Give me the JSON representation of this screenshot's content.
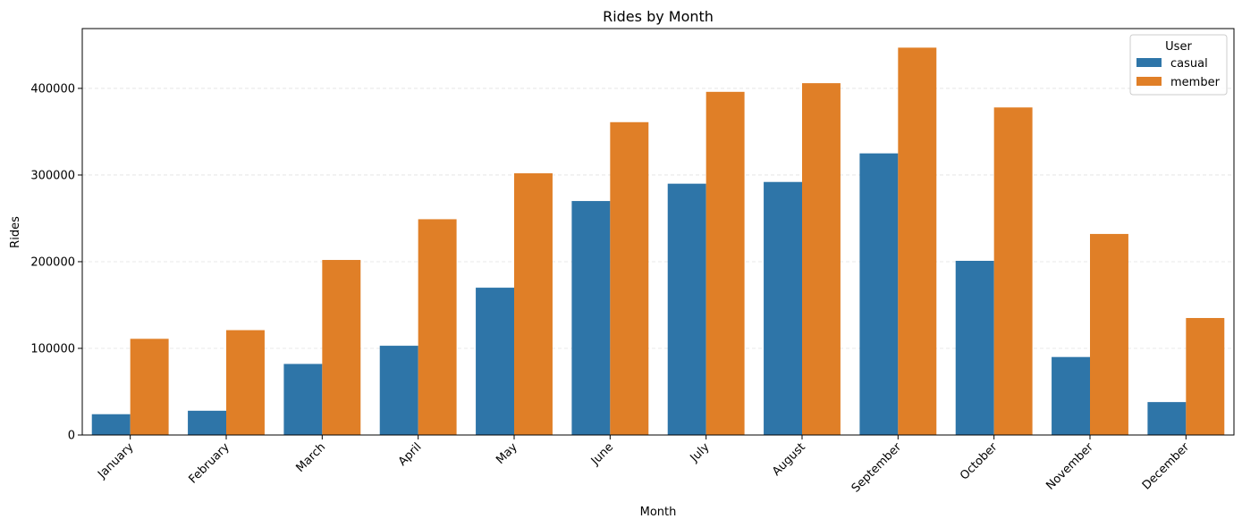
{
  "chart_data": {
    "type": "bar",
    "title": "Rides by Month",
    "xlabel": "Month",
    "ylabel": "Rides",
    "categories": [
      "January",
      "February",
      "March",
      "April",
      "May",
      "June",
      "July",
      "August",
      "September",
      "October",
      "November",
      "December"
    ],
    "series": [
      {
        "name": "casual",
        "color": "#2e75a8",
        "values": [
          24000,
          28000,
          82000,
          103000,
          170000,
          270000,
          290000,
          292000,
          325000,
          201000,
          90000,
          38000
        ]
      },
      {
        "name": "member",
        "color": "#e07f27",
        "values": [
          111000,
          121000,
          202000,
          249000,
          302000,
          361000,
          396000,
          406000,
          447000,
          378000,
          232000,
          135000
        ]
      }
    ],
    "yticks": [
      0,
      100000,
      200000,
      300000,
      400000
    ],
    "ylim": [
      0,
      469000
    ],
    "grid": "y-dashed",
    "legend": {
      "title": "User",
      "placement": "top-right"
    }
  }
}
